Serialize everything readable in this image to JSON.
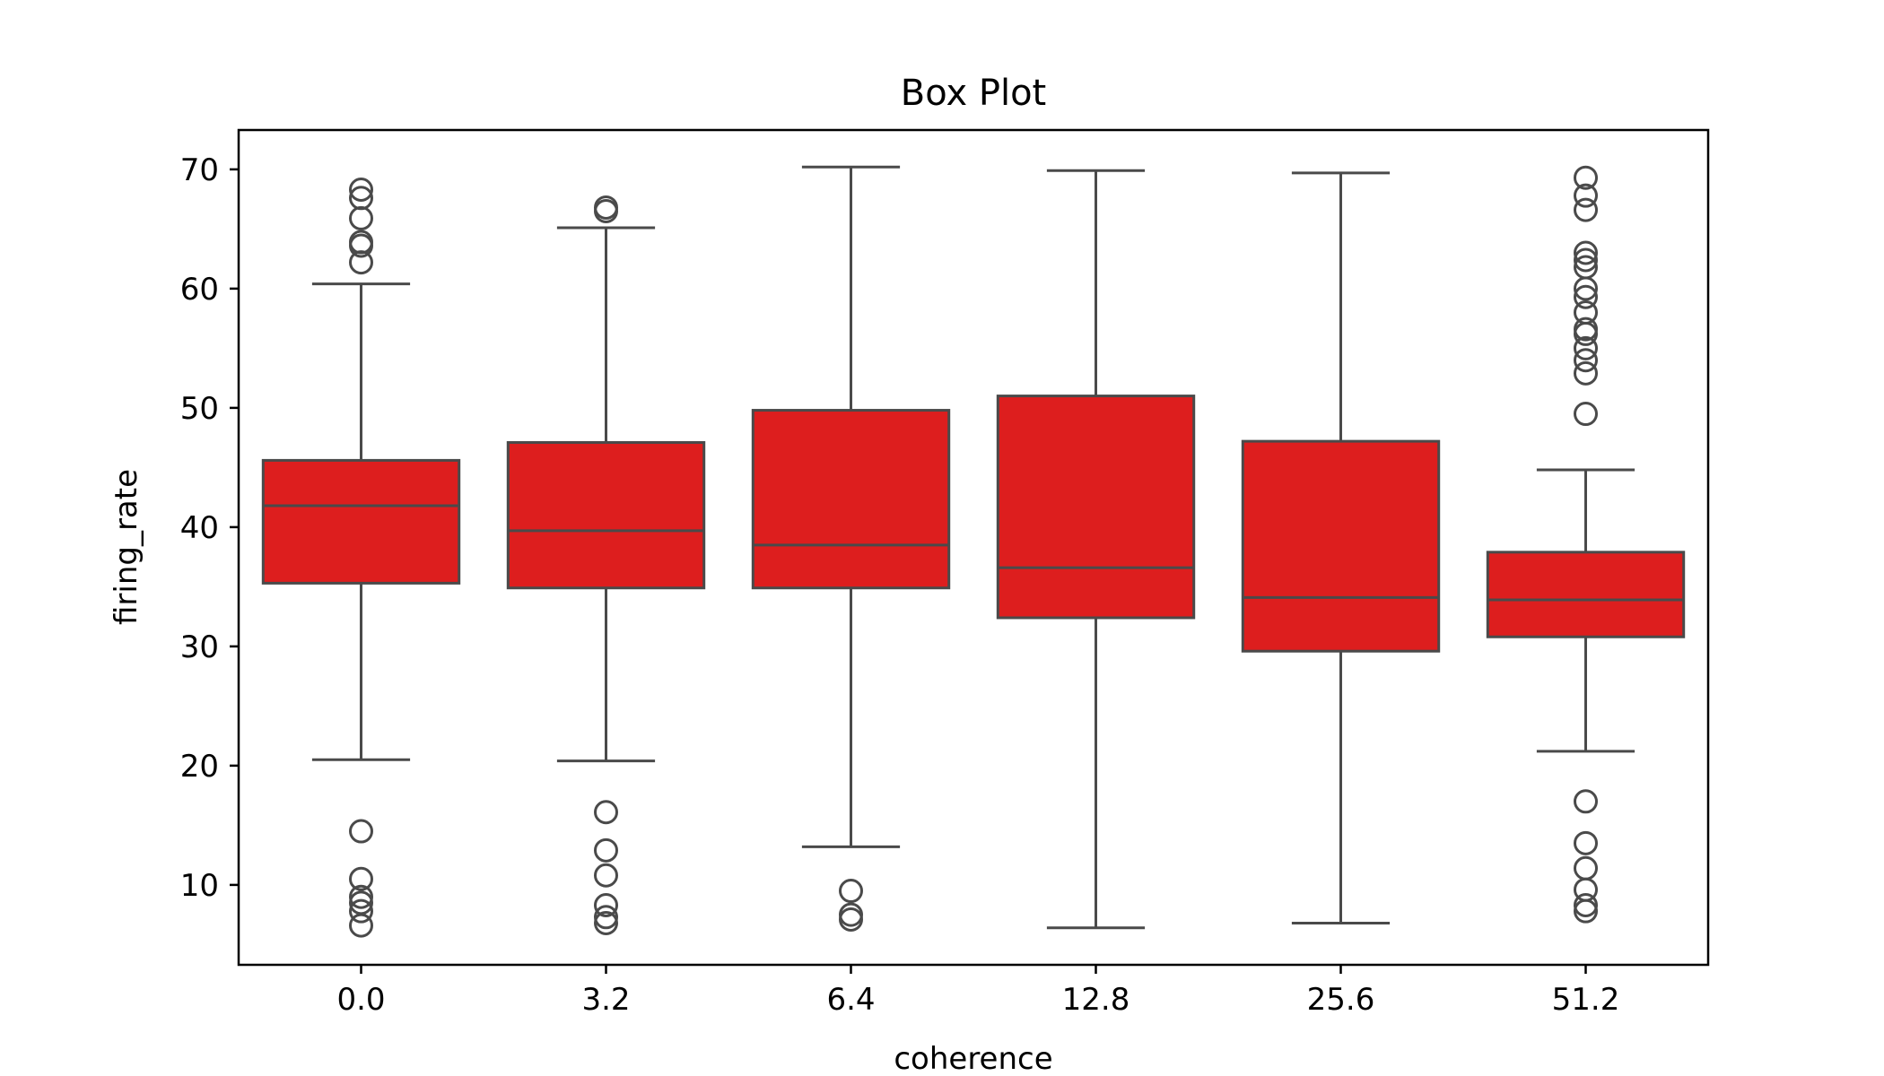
{
  "chart_data": {
    "type": "box",
    "title": "Box Plot",
    "xlabel": "coherence",
    "ylabel": "firing_rate",
    "categories": [
      "0.0",
      "3.2",
      "6.4",
      "12.8",
      "25.6",
      "51.2"
    ],
    "ylim": [
      3.3,
      73.3
    ],
    "yticks": [
      10,
      20,
      30,
      40,
      50,
      60,
      70
    ],
    "box_color": "#dd1e1e",
    "line_color": "#4a4a4a",
    "grid": false,
    "legend": "none",
    "boxes": [
      {
        "category": "0.0",
        "whisker_low": 20.5,
        "q1": 35.3,
        "median": 41.8,
        "q3": 45.6,
        "whisker_high": 60.4,
        "outliers": [
          68.3,
          67.6,
          65.9,
          63.9,
          63.6,
          62.2,
          14.5,
          10.5,
          9.0,
          8.5,
          7.8,
          6.6
        ]
      },
      {
        "category": "3.2",
        "whisker_low": 20.4,
        "q1": 34.9,
        "median": 39.7,
        "q3": 47.1,
        "whisker_high": 65.1,
        "outliers": [
          66.8,
          66.5,
          16.1,
          12.9,
          10.8,
          8.3,
          7.3,
          6.8
        ]
      },
      {
        "category": "6.4",
        "whisker_low": 13.2,
        "q1": 34.9,
        "median": 38.5,
        "q3": 49.8,
        "whisker_high": 70.2,
        "outliers": [
          9.5,
          7.5,
          7.1
        ]
      },
      {
        "category": "12.8",
        "whisker_low": 6.4,
        "q1": 32.4,
        "median": 36.6,
        "q3": 51.0,
        "whisker_high": 69.9,
        "outliers": []
      },
      {
        "category": "25.6",
        "whisker_low": 6.8,
        "q1": 29.6,
        "median": 34.1,
        "q3": 47.2,
        "whisker_high": 69.7,
        "outliers": []
      },
      {
        "category": "51.2",
        "whisker_low": 21.2,
        "q1": 30.8,
        "median": 33.9,
        "q3": 37.9,
        "whisker_high": 44.8,
        "outliers": [
          69.3,
          67.8,
          66.6,
          63.0,
          62.4,
          61.8,
          60.0,
          59.3,
          58.0,
          56.6,
          56.2,
          55.0,
          54.0,
          52.9,
          49.5,
          17.0,
          13.5,
          11.4,
          9.6,
          8.3,
          7.8
        ]
      }
    ]
  }
}
